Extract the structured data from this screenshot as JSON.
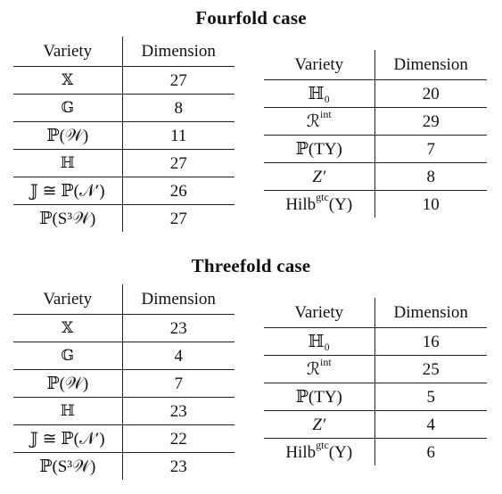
{
  "fourfold": {
    "title": "Fourfold case",
    "left_table": {
      "header": {
        "variety": "Variety",
        "dimension": "Dimension"
      },
      "rows": [
        {
          "variety": "𝕏",
          "dimension": "27"
        },
        {
          "variety": "𝔾",
          "dimension": "8"
        },
        {
          "variety": "ℙ(𝒲)",
          "dimension": "11"
        },
        {
          "variety": "ℍ",
          "dimension": "27"
        },
        {
          "variety": "𝕁 ≅ ℙ(𝒩′)",
          "dimension": "26"
        },
        {
          "variety": "ℙ(S³𝒲)",
          "dimension": "27"
        }
      ]
    },
    "right_table": {
      "header": {
        "variety": "Variety",
        "dimension": "Dimension"
      },
      "rows": [
        {
          "variety": "ℍ₀",
          "dimension": "20"
        },
        {
          "variety": "ℛ^int",
          "dimension": "29"
        },
        {
          "variety": "ℙ(TY)",
          "dimension": "7"
        },
        {
          "variety": "Z′",
          "dimension": "8"
        },
        {
          "variety": "Hilb^gtc(Y)",
          "dimension": "10"
        }
      ]
    }
  },
  "threefold": {
    "title": "Threefold case",
    "left_table": {
      "header": {
        "variety": "Variety",
        "dimension": "Dimension"
      },
      "rows": [
        {
          "variety": "𝕏",
          "dimension": "23"
        },
        {
          "variety": "𝔾",
          "dimension": "4"
        },
        {
          "variety": "ℙ(𝒲)",
          "dimension": "7"
        },
        {
          "variety": "ℍ",
          "dimension": "23"
        },
        {
          "variety": "𝕁 ≅ ℙ(𝒩′)",
          "dimension": "22"
        },
        {
          "variety": "ℙ(S³𝒲)",
          "dimension": "23"
        }
      ]
    },
    "right_table": {
      "header": {
        "variety": "Variety",
        "dimension": "Dimension"
      },
      "rows": [
        {
          "variety": "ℍ₀",
          "dimension": "16"
        },
        {
          "variety": "ℛ^int",
          "dimension": "25"
        },
        {
          "variety": "ℙ(TY)",
          "dimension": "5"
        },
        {
          "variety": "Z′",
          "dimension": "4"
        },
        {
          "variety": "Hilb^gtc(Y)",
          "dimension": "6"
        }
      ]
    }
  }
}
